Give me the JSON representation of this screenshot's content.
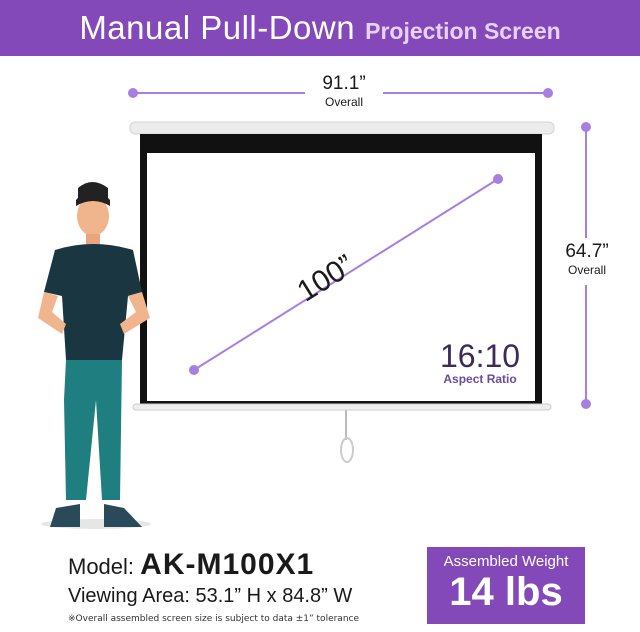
{
  "header": {
    "title": "Manual Pull-Down",
    "subtitle": "Projection Screen"
  },
  "dimensions": {
    "width": {
      "value": "91.1”",
      "label": "Overall"
    },
    "height": {
      "value": "64.7”",
      "label": "Overall"
    },
    "diagonal": "100”",
    "aspect": {
      "value": "16:10",
      "label": "Aspect Ratio"
    }
  },
  "specs": {
    "model_label": "Model:",
    "model": "AK-M100X1",
    "viewing_area": "Viewing Area: 53.1” H x 84.8” W",
    "note": "※Overall assembled screen size is subject to data ±1” tolerance"
  },
  "weight": {
    "label": "Assembled Weight",
    "value": "14 lbs"
  },
  "colors": {
    "brand": "#8449b9",
    "accent": "#a77fe0"
  }
}
